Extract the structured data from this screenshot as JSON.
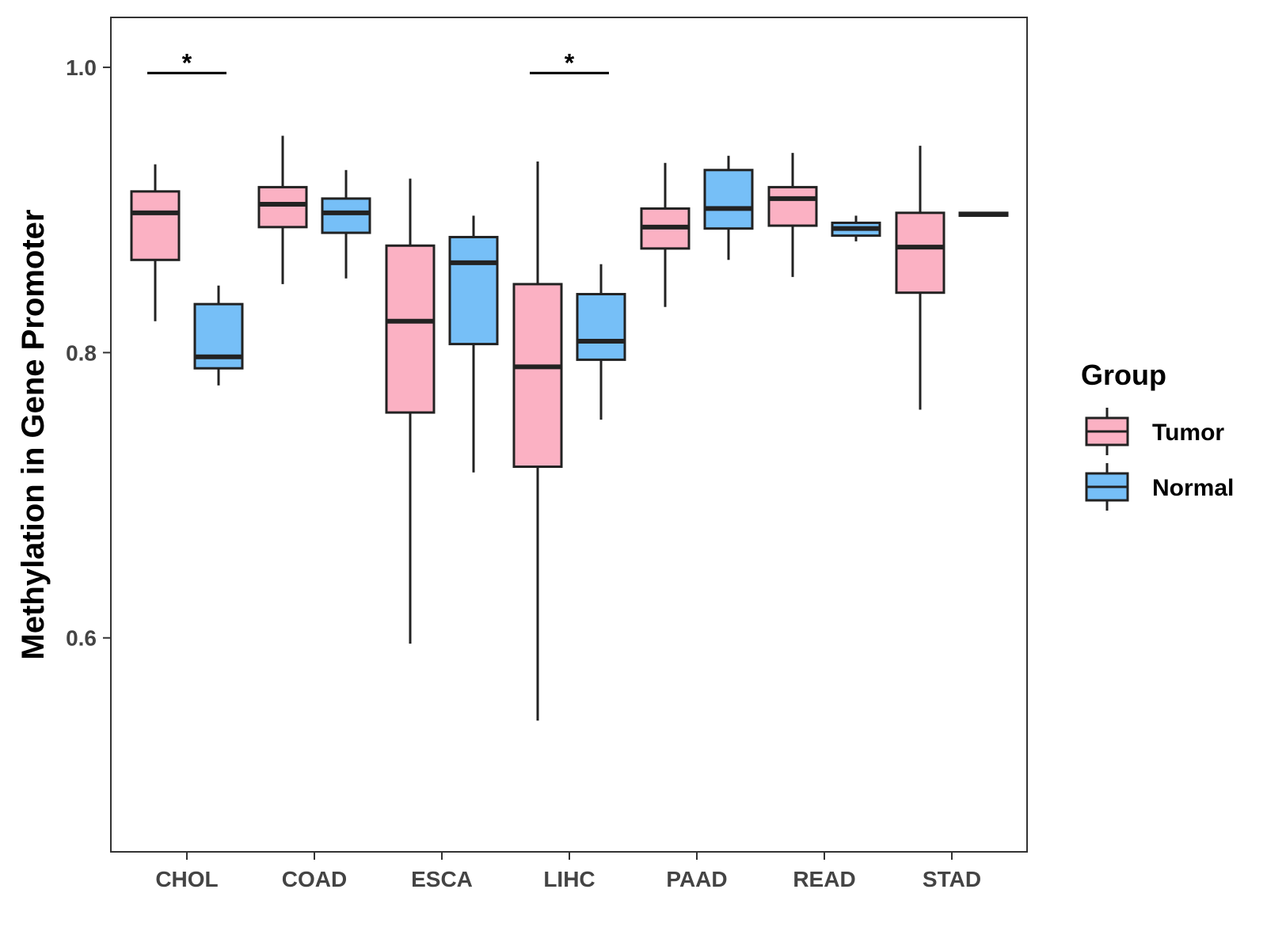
{
  "chart_data": {
    "type": "box",
    "title": "",
    "xlabel": "",
    "ylabel": "Methylation in Gene Promoter",
    "ylim": [
      0.45,
      1.035
    ],
    "yticks": [
      0.6,
      0.8,
      1.0
    ],
    "ytick_labels": [
      "0.6",
      "0.8",
      "1.0"
    ],
    "categories": [
      "CHOL",
      "COAD",
      "ESCA",
      "LIHC",
      "PAAD",
      "READ",
      "STAD"
    ],
    "legend": {
      "title": "Group",
      "position": "right",
      "entries": [
        {
          "name": "Tumor",
          "color": "#fbb1c3"
        },
        {
          "name": "Normal",
          "color": "#76bff7"
        }
      ]
    },
    "series": [
      {
        "name": "Tumor",
        "color": "#fbb1c3",
        "boxes": [
          {
            "category": "CHOL",
            "min": 0.822,
            "q1": 0.865,
            "median": 0.898,
            "q3": 0.913,
            "max": 0.932
          },
          {
            "category": "COAD",
            "min": 0.848,
            "q1": 0.888,
            "median": 0.904,
            "q3": 0.916,
            "max": 0.952
          },
          {
            "category": "ESCA",
            "min": 0.596,
            "q1": 0.758,
            "median": 0.822,
            "q3": 0.875,
            "max": 0.922
          },
          {
            "category": "LIHC",
            "min": 0.542,
            "q1": 0.72,
            "median": 0.79,
            "q3": 0.848,
            "max": 0.934
          },
          {
            "category": "PAAD",
            "min": 0.832,
            "q1": 0.873,
            "median": 0.888,
            "q3": 0.901,
            "max": 0.933
          },
          {
            "category": "READ",
            "min": 0.853,
            "q1": 0.889,
            "median": 0.908,
            "q3": 0.916,
            "max": 0.94
          },
          {
            "category": "STAD",
            "min": 0.76,
            "q1": 0.842,
            "median": 0.874,
            "q3": 0.898,
            "max": 0.945
          }
        ]
      },
      {
        "name": "Normal",
        "color": "#76bff7",
        "boxes": [
          {
            "category": "CHOL",
            "min": 0.777,
            "q1": 0.789,
            "median": 0.797,
            "q3": 0.834,
            "max": 0.847
          },
          {
            "category": "COAD",
            "min": 0.852,
            "q1": 0.884,
            "median": 0.898,
            "q3": 0.908,
            "max": 0.928
          },
          {
            "category": "ESCA",
            "min": 0.716,
            "q1": 0.806,
            "median": 0.863,
            "q3": 0.881,
            "max": 0.896
          },
          {
            "category": "LIHC",
            "min": 0.753,
            "q1": 0.795,
            "median": 0.808,
            "q3": 0.841,
            "max": 0.862
          },
          {
            "category": "PAAD",
            "min": 0.865,
            "q1": 0.887,
            "median": 0.901,
            "q3": 0.928,
            "max": 0.938
          },
          {
            "category": "READ",
            "min": 0.878,
            "q1": 0.882,
            "median": 0.887,
            "q3": 0.891,
            "max": 0.896
          },
          {
            "category": "STAD",
            "min": 0.896,
            "q1": 0.896,
            "median": 0.897,
            "q3": 0.898,
            "max": 0.898
          }
        ]
      }
    ],
    "annotations": [
      {
        "category": "CHOL",
        "label": "*",
        "y": 0.996
      },
      {
        "category": "LIHC",
        "label": "*",
        "y": 0.996
      }
    ]
  }
}
